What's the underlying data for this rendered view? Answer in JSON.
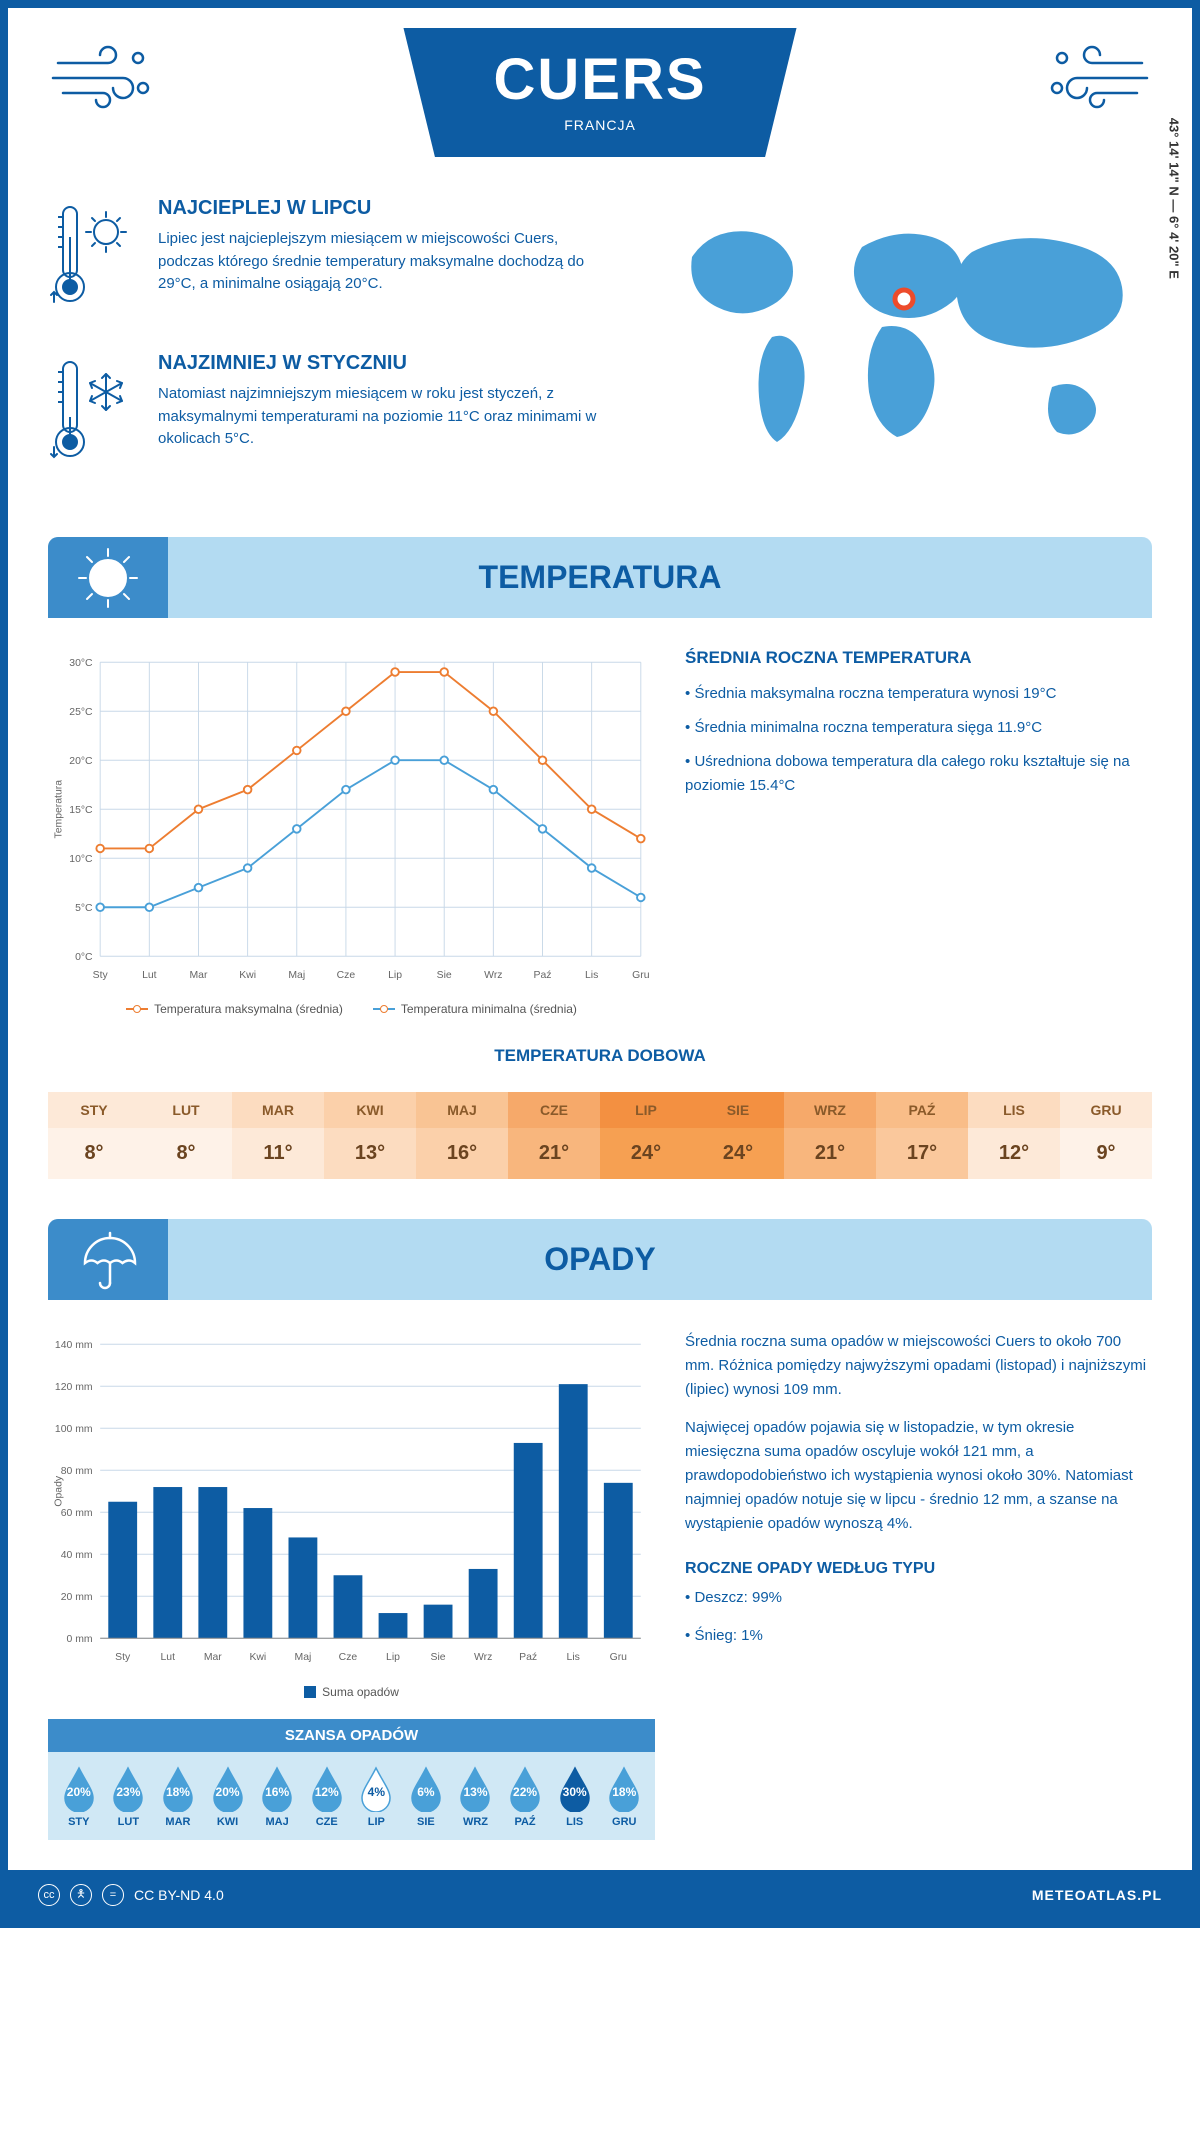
{
  "header": {
    "city": "CUERS",
    "country": "FRANCJA",
    "coordinates": "43° 14' 14\" N — 6° 4' 20\" E"
  },
  "colors": {
    "primary": "#0d5ca3",
    "light_blue": "#b3dbf2",
    "mid_blue": "#3c8cca",
    "sky": "#49a0d8",
    "orange": "#ed7d31",
    "grid": "#c8d8e8"
  },
  "facts": {
    "warm": {
      "title": "NAJCIEPLEJ W LIPCU",
      "text": "Lipiec jest najcieplejszym miesiącem w miejscowości Cuers, podczas którego średnie temperatury maksymalne dochodzą do 29°C, a minimalne osiągają 20°C."
    },
    "cold": {
      "title": "NAJZIMNIEJ W STYCZNIU",
      "text": "Natomiast najzimniejszym miesiącem w roku jest styczeń, z maksymalnymi temperaturami na poziomie 11°C oraz minimami w okolicach 5°C."
    }
  },
  "temperature": {
    "section_title": "TEMPERATURA",
    "chart": {
      "type": "line",
      "months": [
        "Sty",
        "Lut",
        "Mar",
        "Kwi",
        "Maj",
        "Cze",
        "Lip",
        "Sie",
        "Wrz",
        "Paź",
        "Lis",
        "Gru"
      ],
      "max_values": [
        11,
        11,
        15,
        17,
        21,
        25,
        29,
        29,
        25,
        20,
        15,
        12
      ],
      "min_values": [
        5,
        5,
        7,
        9,
        13,
        17,
        20,
        20,
        17,
        13,
        9,
        6
      ],
      "max_color": "#ed7d31",
      "min_color": "#49a0d8",
      "ylim": [
        0,
        30
      ],
      "ytick_step": 5,
      "ylabel": "Temperatura",
      "legend_max": "Temperatura maksymalna (średnia)",
      "legend_min": "Temperatura minimalna (średnia)"
    },
    "info": {
      "title": "ŚREDNIA ROCZNA TEMPERATURA",
      "p1": "• Średnia maksymalna roczna temperatura wynosi 19°C",
      "p2": "• Średnia minimalna roczna temperatura sięga 11.9°C",
      "p3": "• Uśredniona dobowa temperatura dla całego roku kształtuje się na poziomie 15.4°C"
    },
    "daily": {
      "title": "TEMPERATURA DOBOWA",
      "months": [
        "STY",
        "LUT",
        "MAR",
        "KWI",
        "MAJ",
        "CZE",
        "LIP",
        "SIE",
        "WRZ",
        "PAŹ",
        "LIS",
        "GRU"
      ],
      "values": [
        "8°",
        "8°",
        "11°",
        "13°",
        "16°",
        "21°",
        "24°",
        "24°",
        "21°",
        "17°",
        "12°",
        "9°"
      ],
      "header_colors": [
        "#fde9d8",
        "#fde9d8",
        "#fcdcc0",
        "#fbd0aa",
        "#f9c494",
        "#f6a96a",
        "#f39041",
        "#f39041",
        "#f6a96a",
        "#f9bd88",
        "#fcdcc0",
        "#fde9d8"
      ],
      "value_colors": [
        "#fef2e8",
        "#fef2e8",
        "#fde9d8",
        "#fcdcc0",
        "#fbd0aa",
        "#f8b67d",
        "#f6a052",
        "#f6a052",
        "#f8b67d",
        "#fac89c",
        "#fde9d8",
        "#fef2e8"
      ]
    }
  },
  "precip": {
    "section_title": "OPADY",
    "chart": {
      "type": "bar",
      "months": [
        "Sty",
        "Lut",
        "Mar",
        "Kwi",
        "Maj",
        "Cze",
        "Lip",
        "Sie",
        "Wrz",
        "Paź",
        "Lis",
        "Gru"
      ],
      "values": [
        65,
        72,
        72,
        62,
        48,
        30,
        12,
        16,
        33,
        93,
        121,
        74
      ],
      "bar_color": "#0d5ca3",
      "ylim": [
        0,
        140
      ],
      "ytick_step": 20,
      "ylabel": "Opady",
      "legend": "Suma opadów"
    },
    "text1": "Średnia roczna suma opadów w miejscowości Cuers to około 700 mm. Różnica pomiędzy najwyższymi opadami (listopad) i najniższymi (lipiec) wynosi 109 mm.",
    "text2": "Najwięcej opadów pojawia się w listopadzie, w tym okresie miesięczna suma opadów oscyluje wokół 121 mm, a prawdopodobieństwo ich wystąpienia wynosi około 30%. Natomiast najmniej opadów notuje się w lipcu - średnio 12 mm, a szanse na wystąpienie opadów wynoszą 4%.",
    "chance": {
      "title": "SZANSA OPADÓW",
      "months": [
        "STY",
        "LUT",
        "MAR",
        "KWI",
        "MAJ",
        "CZE",
        "LIP",
        "SIE",
        "WRZ",
        "PAŹ",
        "LIS",
        "GRU"
      ],
      "values": [
        "20%",
        "23%",
        "18%",
        "20%",
        "16%",
        "12%",
        "4%",
        "6%",
        "13%",
        "22%",
        "30%",
        "18%"
      ],
      "drop_colors": [
        "#49a0d8",
        "#49a0d8",
        "#49a0d8",
        "#49a0d8",
        "#49a0d8",
        "#49a0d8",
        "#ffffff",
        "#49a0d8",
        "#49a0d8",
        "#49a0d8",
        "#0d5ca3",
        "#49a0d8"
      ],
      "text_colors": [
        "#fff",
        "#fff",
        "#fff",
        "#fff",
        "#fff",
        "#fff",
        "#0d5ca3",
        "#fff",
        "#fff",
        "#fff",
        "#fff",
        "#fff"
      ]
    },
    "by_type": {
      "title": "ROCZNE OPADY WEDŁUG TYPU",
      "p1": "• Deszcz: 99%",
      "p2": "• Śnieg: 1%"
    }
  },
  "footer": {
    "license": "CC BY-ND 4.0",
    "site": "METEOATLAS.PL"
  }
}
